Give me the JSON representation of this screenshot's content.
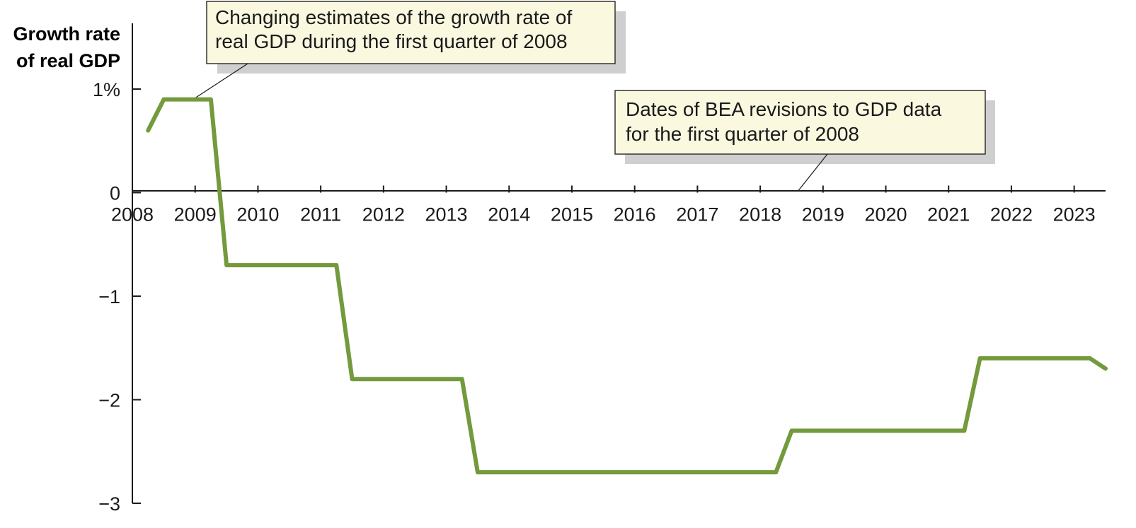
{
  "chart_data": {
    "type": "line",
    "title": "",
    "xlabel": "",
    "ylabel_lines": [
      "Growth rate",
      "of real GDP"
    ],
    "xlim": [
      2008,
      2023.5
    ],
    "ylim": [
      -3,
      1
    ],
    "x_ticks": [
      2008,
      2009,
      2010,
      2011,
      2012,
      2013,
      2014,
      2015,
      2016,
      2017,
      2018,
      2019,
      2020,
      2021,
      2022,
      2023
    ],
    "x_tick_labels": [
      "2008",
      "2009",
      "2010",
      "2011",
      "2012",
      "2013",
      "2014",
      "2015",
      "2016",
      "2017",
      "2018",
      "2019",
      "2020",
      "2021",
      "2022",
      "2023"
    ],
    "y_ticks": [
      1,
      0,
      -1,
      -2,
      -3
    ],
    "y_tick_labels": [
      "1%",
      "0",
      "−1",
      "−2",
      "−3"
    ],
    "grid": false,
    "legend": "none",
    "series": [
      {
        "color": "#739a3c",
        "x": [
          2008.25,
          2008.5,
          2009.25,
          2009.5,
          2011.25,
          2011.5,
          2013.25,
          2013.5,
          2018.25,
          2018.5,
          2021.25,
          2021.5,
          2023.25,
          2023.5
        ],
        "y": [
          0.6,
          0.9,
          0.9,
          -0.7,
          -0.7,
          -1.8,
          -1.8,
          -2.7,
          -2.7,
          -2.3,
          -2.3,
          -1.6,
          -1.6,
          -1.7
        ]
      }
    ],
    "annotations": [
      {
        "lines": [
          "Changing estimates of the growth rate of",
          "real GDP during the first quarter of 2008"
        ],
        "points_to": [
          2009.0,
          0.9
        ]
      },
      {
        "lines": [
          "Dates of BEA revisions to GDP data",
          "for the first quarter of 2008"
        ],
        "points_to": [
          2018.6,
          0
        ]
      }
    ]
  }
}
